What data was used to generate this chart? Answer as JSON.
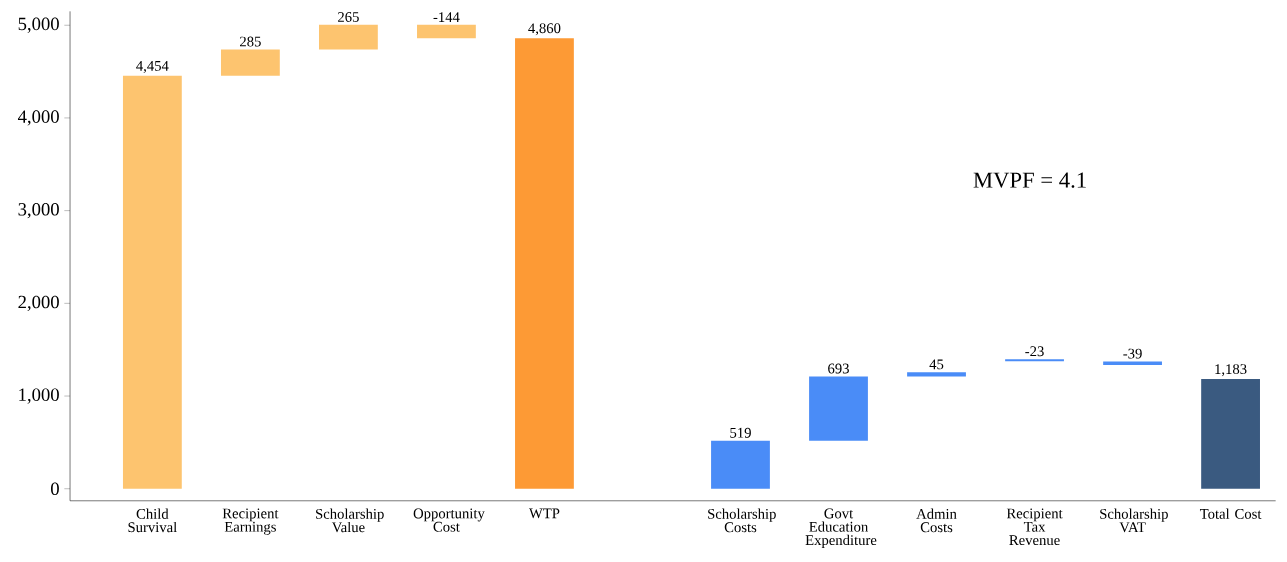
{
  "chart_data": {
    "type": "bar",
    "categories": [
      "Child Survival",
      "Recipient Earnings",
      "Scholarship Value",
      "Opportunity Cost",
      "WTP",
      null,
      "Scholarship Costs",
      "Govt Education Expenditure",
      "Admin Costs",
      "Recipient Tax Revenue",
      "Scholarship VAT",
      "Total Cost"
    ],
    "values": [
      4454,
      285,
      265,
      -144,
      4860,
      null,
      519,
      693,
      45,
      -23,
      -39,
      1183
    ],
    "base": [
      0,
      4454,
      4739,
      5004,
      0,
      null,
      0,
      519,
      1212,
      1398,
      1373,
      0
    ],
    "colors": [
      "#fdc46f",
      "#fdc46f",
      "#fdc46f",
      "#fdc46f",
      "#fd9a35",
      null,
      "#4a8cf7",
      "#4a8cf7",
      "#4a8cf7",
      "#4a8cf7",
      "#4a8cf7",
      "#3a5a80"
    ],
    "value_labels": [
      "4,454",
      "285",
      "265",
      "-144",
      "4,860",
      null,
      "519",
      "693",
      "45",
      "-23",
      "-39",
      "1,183"
    ],
    "ylim": [
      -130,
      5150
    ],
    "yticks": [
      {
        "value": 0,
        "label": "0"
      },
      {
        "value": 1000,
        "label": "1,000"
      },
      {
        "value": 2000,
        "label": "2,000"
      },
      {
        "value": 3000,
        "label": "3,000"
      },
      {
        "value": 4000,
        "label": "4,000"
      },
      {
        "value": 5000,
        "label": "5,000"
      }
    ],
    "annotations": [
      "MVPF = 4.1"
    ],
    "grid": false
  }
}
